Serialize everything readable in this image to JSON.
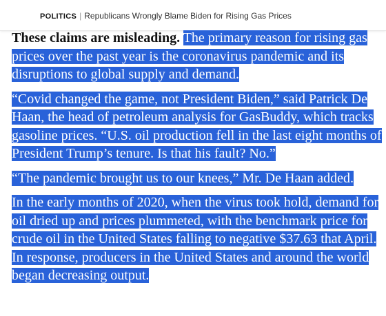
{
  "header": {
    "section_label": "POLITICS",
    "separator": "|",
    "headline": "Republicans Wrongly Blame Biden for Rising Gas Prices"
  },
  "article": {
    "p1": {
      "lead_bold": "These claims are misleading.",
      "lines": [
        "The primary reason for rising gas",
        "prices over the past year is the coronavirus pandemic and its",
        "disruptions to global supply and demand."
      ]
    },
    "p2": {
      "lines": [
        "“Covid changed the game, not President Biden,” said Patrick De",
        "Haan, the head of petroleum analysis for GasBuddy, which tracks",
        "gasoline prices. “U.S. oil production fell in the last eight months of",
        "President Trump’s tenure. Is that his fault? No.”"
      ]
    },
    "p3": {
      "lines": [
        "“The pandemic brought us to our knees,” Mr. De Haan added."
      ]
    },
    "p4": {
      "lines": [
        "In the early months of 2020, when the virus took hold, demand for",
        "oil dried up and prices plummeted, with the benchmark price for",
        "crude oil in the United States falling to negative $37.63 that April.",
        "In response, producers in the United States and around the world",
        "began decreasing output."
      ]
    }
  },
  "colors": {
    "selection_background": "#2962d9",
    "selection_text": "#ffffff",
    "body_text": "#121212"
  }
}
